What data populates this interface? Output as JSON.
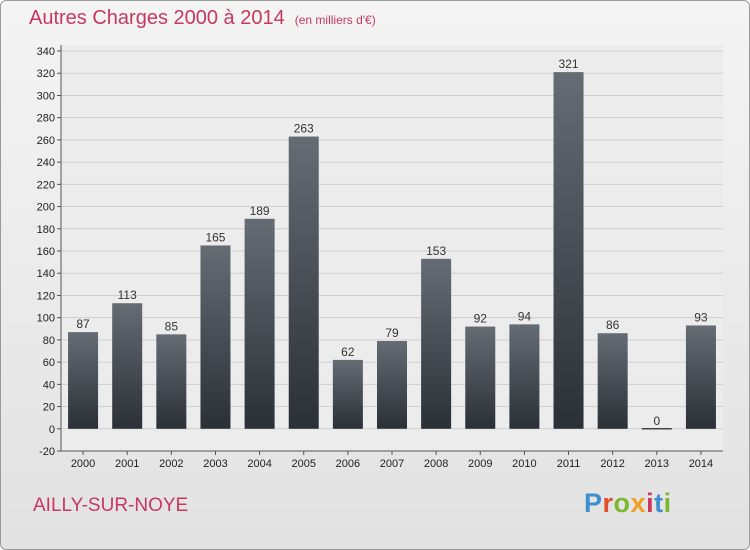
{
  "header": {
    "title": "Autres Charges 2000 à 2014",
    "unit": "(en milliers d'€)"
  },
  "footer": {
    "place": "AILLY-SUR-NOYE",
    "logo": "Proxiti"
  },
  "colors": {
    "title": "#c8385e",
    "bar_top": "#666c74",
    "bar_bottom": "#2b3036",
    "logo": [
      "#3d8fd0",
      "#e0502a",
      "#7cb82f",
      "#f0a020",
      "#c8385e",
      "#3d8fd0",
      "#7cb82f"
    ]
  },
  "chart_data": {
    "type": "bar",
    "categories": [
      "2000",
      "2001",
      "2002",
      "2003",
      "2004",
      "2005",
      "2006",
      "2007",
      "2008",
      "2009",
      "2010",
      "2011",
      "2012",
      "2013",
      "2014"
    ],
    "values": [
      87,
      113,
      85,
      165,
      189,
      263,
      62,
      79,
      153,
      92,
      94,
      321,
      86,
      0,
      93
    ],
    "title": "Autres Charges 2000 à 2014",
    "ylabel": "(en milliers d'€)",
    "xlabel": "",
    "ylim": [
      -20,
      340
    ],
    "ytick_step": 20,
    "grid": true,
    "legend": "none"
  }
}
